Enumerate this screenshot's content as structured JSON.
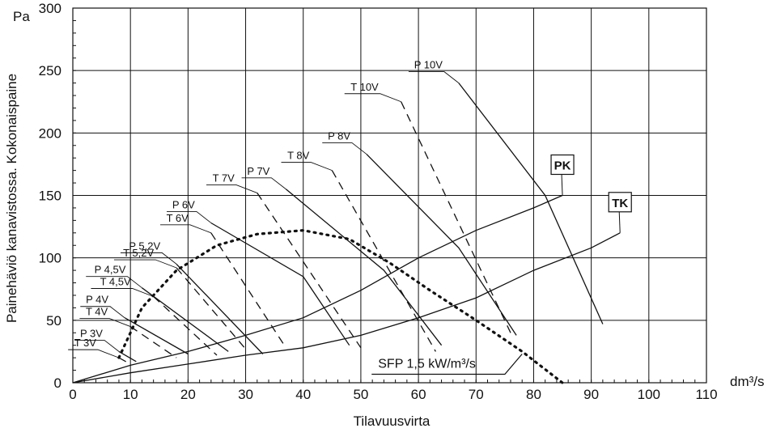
{
  "chart_data": {
    "type": "line",
    "ylabel": "Painehäviö kanavistossa. Kokonaispaine",
    "y_unit": "Pa",
    "xlabel": "Tilavuusvirta",
    "x_unit": "dm³/s",
    "xlim": [
      0,
      110
    ],
    "ylim": [
      0,
      300
    ],
    "x_ticks": [
      "0",
      "10",
      "20",
      "30",
      "40",
      "50",
      "60",
      "70",
      "80",
      "90",
      "100",
      "110"
    ],
    "y_ticks": [
      "0",
      "50",
      "100",
      "150",
      "200",
      "250",
      "300"
    ],
    "grid": true,
    "series": [
      {
        "name": "PK",
        "style": "solid",
        "label_style": "box",
        "points": [
          [
            0,
            0
          ],
          [
            10,
            14
          ],
          [
            20,
            25
          ],
          [
            30,
            38
          ],
          [
            40,
            52
          ],
          [
            50,
            74
          ],
          [
            60,
            100
          ],
          [
            70,
            122
          ],
          [
            80,
            140
          ],
          [
            85,
            150
          ]
        ]
      },
      {
        "name": "TK",
        "style": "solid",
        "label_style": "box",
        "points": [
          [
            0,
            0
          ],
          [
            10,
            8
          ],
          [
            20,
            15
          ],
          [
            30,
            22
          ],
          [
            40,
            28
          ],
          [
            50,
            38
          ],
          [
            60,
            52
          ],
          [
            70,
            68
          ],
          [
            80,
            90
          ],
          [
            90,
            108
          ],
          [
            95,
            120
          ]
        ]
      },
      {
        "name": "SFP 1,5 kW/m³/s",
        "style": "dotted",
        "label_style": "underline",
        "points": [
          [
            8,
            20
          ],
          [
            12,
            60
          ],
          [
            18,
            90
          ],
          [
            25,
            110
          ],
          [
            32,
            119
          ],
          [
            40,
            122
          ],
          [
            48,
            115
          ],
          [
            55,
            96
          ],
          [
            62,
            74
          ],
          [
            70,
            50
          ],
          [
            78,
            25
          ],
          [
            85,
            0
          ]
        ]
      },
      {
        "name": "P 3V",
        "style": "solid",
        "points": [
          [
            8,
            25
          ],
          [
            11,
            17
          ]
        ]
      },
      {
        "name": "T 3V",
        "style": "dashed",
        "points": [
          [
            8,
            20
          ],
          [
            10,
            15
          ]
        ]
      },
      {
        "name": "P 4V",
        "style": "solid",
        "points": [
          [
            9,
            52
          ],
          [
            20,
            23
          ]
        ]
      },
      {
        "name": "T 4V",
        "style": "dashed",
        "points": [
          [
            10,
            45
          ],
          [
            18,
            20
          ]
        ]
      },
      {
        "name": "P 4,5V",
        "style": "solid",
        "points": [
          [
            12,
            76
          ],
          [
            27,
            25
          ]
        ]
      },
      {
        "name": "T 4,5V",
        "style": "dashed",
        "points": [
          [
            14,
            69
          ],
          [
            25,
            22
          ]
        ]
      },
      {
        "name": "P 5,2V",
        "style": "solid",
        "points": [
          [
            18,
            95
          ],
          [
            33,
            23
          ]
        ]
      },
      {
        "name": "T 5,2V",
        "style": "dashed",
        "points": [
          [
            18,
            92
          ],
          [
            30,
            27
          ]
        ]
      },
      {
        "name": "P 6V",
        "style": "solid",
        "points": [
          [
            24,
            128
          ],
          [
            40,
            85
          ],
          [
            48,
            30
          ]
        ]
      },
      {
        "name": "T 6V",
        "style": "dashed",
        "points": [
          [
            24,
            120
          ],
          [
            37,
            28
          ]
        ]
      },
      {
        "name": "P 7V",
        "style": "solid",
        "points": [
          [
            37,
            155
          ],
          [
            54,
            90
          ],
          [
            64,
            30
          ]
        ]
      },
      {
        "name": "T 7V",
        "style": "dashed",
        "points": [
          [
            32,
            152
          ],
          [
            50,
            28
          ]
        ]
      },
      {
        "name": "P 8V",
        "style": "solid",
        "points": [
          [
            51,
            183
          ],
          [
            67,
            108
          ],
          [
            77,
            38
          ]
        ]
      },
      {
        "name": "T 8V",
        "style": "dashed",
        "points": [
          [
            45,
            170
          ],
          [
            63,
            25
          ]
        ]
      },
      {
        "name": "P 10V",
        "style": "solid",
        "points": [
          [
            67,
            240
          ],
          [
            82,
            150
          ],
          [
            92,
            47
          ]
        ]
      },
      {
        "name": "T 10V",
        "style": "dashed",
        "points": [
          [
            57,
            225
          ],
          [
            76,
            40
          ]
        ]
      }
    ]
  }
}
